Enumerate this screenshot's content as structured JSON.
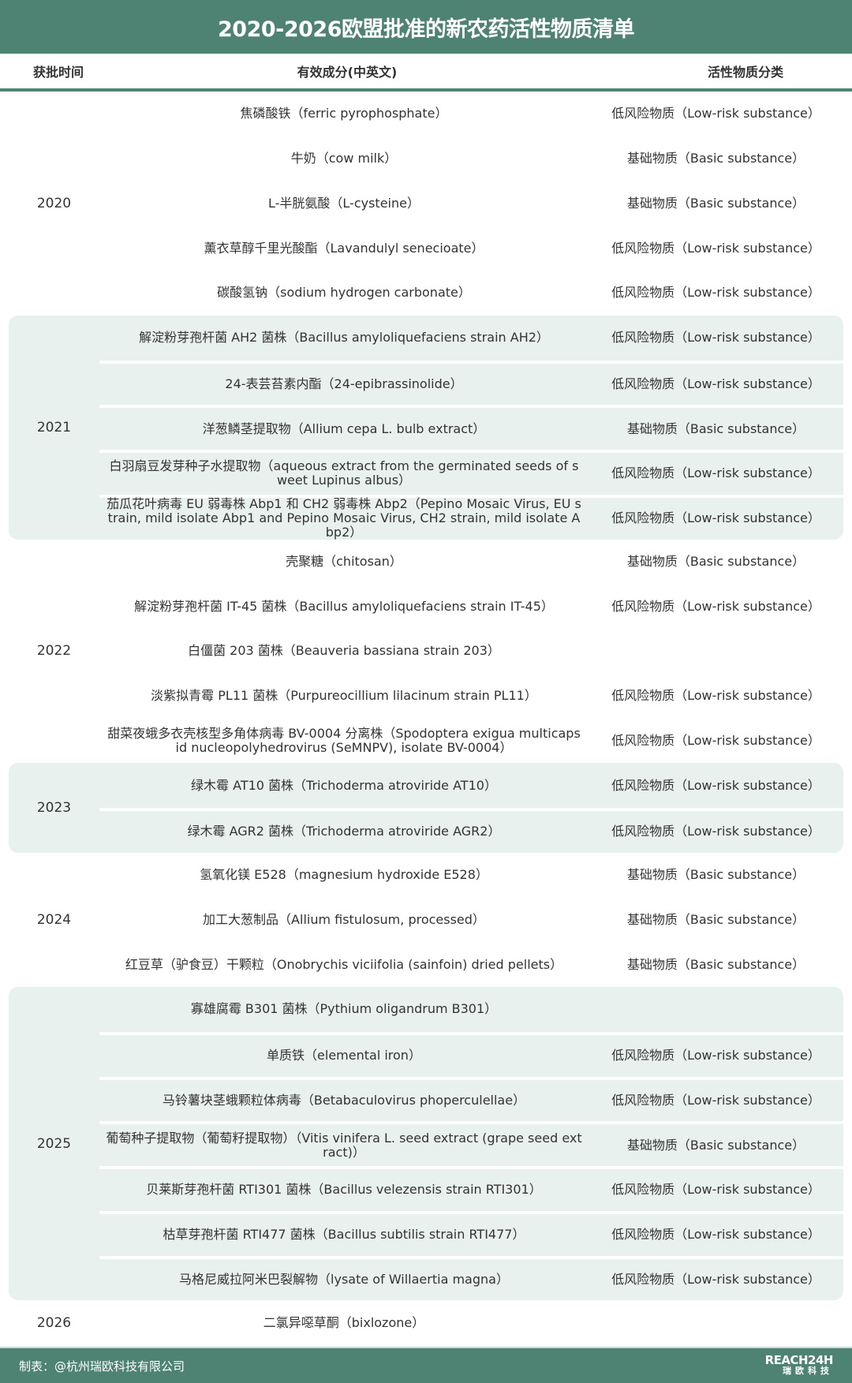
{
  "title": "2020-2026欧盟批准的新农药活性物质清单",
  "headers": {
    "year": "获批时间",
    "ingredient": "有效成分(中英文)",
    "category": "活性物质分类"
  },
  "groups": [
    {
      "year": "2020",
      "shaded": false,
      "rows": [
        {
          "name": "焦磷酸铁（ferric pyrophosphate）",
          "category": "低风险物质（Low-risk substance）"
        },
        {
          "name": "牛奶（cow milk）",
          "category": "基础物质（Basic substance）"
        },
        {
          "name": "L-半胱氨酸（L-cysteine）",
          "category": "基础物质（Basic substance）"
        },
        {
          "name": "薰衣草醇千里光酸酯（Lavandulyl senecioate）",
          "category": "低风险物质（Low-risk substance）"
        },
        {
          "name": "碳酸氢钠（sodium hydrogen carbonate）",
          "category": "低风险物质（Low-risk substance）"
        }
      ]
    },
    {
      "year": "2021",
      "shaded": true,
      "rows": [
        {
          "name": "解淀粉芽孢杆菌 AH2 菌株（Bacillus amyloliquefaciens strain AH2）",
          "category": "低风险物质（Low-risk substance）"
        },
        {
          "name": "24-表芸苔素内酯（24-epibrassinolide）",
          "category": "低风险物质（Low-risk substance）"
        },
        {
          "name": "洋葱鳞茎提取物（Allium cepa L. bulb extract）",
          "category": "基础物质（Basic substance）"
        },
        {
          "name": "白羽扇豆发芽种子水提取物（aqueous extract from the germinated seeds of sweet Lupinus albus）",
          "category": "低风险物质（Low-risk substance）"
        },
        {
          "name": "茄瓜花叶病毒 EU 弱毒株 Abp1 和 CH2 弱毒株 Abp2（Pepino Mosaic Virus, EU strain, mild isolate Abp1 and Pepino Mosaic Virus, CH2 strain, mild isolate Abp2）",
          "category": "低风险物质（Low-risk substance）"
        }
      ]
    },
    {
      "year": "2022",
      "shaded": false,
      "rows": [
        {
          "name": "壳聚糖（chitosan）",
          "category": "基础物质（Basic substance）"
        },
        {
          "name": "解淀粉芽孢杆菌 IT-45 菌株（Bacillus amyloliquefaciens strain IT-45）",
          "category": "低风险物质（Low-risk substance）"
        },
        {
          "name": "白僵菌 203 菌株（Beauveria bassiana strain 203）",
          "category": ""
        },
        {
          "name": "淡紫拟青霉 PL11 菌株（Purpureocillium lilacinum strain PL11）",
          "category": "低风险物质（Low-risk substance）"
        },
        {
          "name": "甜菜夜蛾多衣壳核型多角体病毒 BV-0004 分离株（Spodoptera exigua multicapsid nucleopolyhedrovirus (SeMNPV), isolate BV-0004）",
          "category": "低风险物质（Low-risk substance）"
        }
      ]
    },
    {
      "year": "2023",
      "shaded": true,
      "rows": [
        {
          "name": "绿木霉 AT10 菌株（Trichoderma atroviride AT10）",
          "category": "低风险物质（Low-risk substance）"
        },
        {
          "name": "绿木霉 AGR2 菌株（Trichoderma atroviride AGR2）",
          "category": "低风险物质（Low-risk substance）"
        }
      ]
    },
    {
      "year": "2024",
      "shaded": false,
      "rows": [
        {
          "name": "氢氧化镁 E528（magnesium hydroxide E528）",
          "category": "基础物质（Basic substance）"
        },
        {
          "name": "加工大葱制品（Allium fistulosum, processed）",
          "category": "基础物质（Basic substance）"
        },
        {
          "name": "红豆草（驴食豆）干颗粒（Onobrychis viciifolia (sainfoin) dried pellets）",
          "category": "基础物质（Basic substance）"
        }
      ]
    },
    {
      "year": "2025",
      "shaded": true,
      "rows": [
        {
          "name": "寡雄腐霉 B301 菌株（Pythium oligandrum B301）",
          "category": ""
        },
        {
          "name": "单质铁（elemental iron）",
          "category": "低风险物质（Low-risk substance）"
        },
        {
          "name": "马铃薯块茎蛾颗粒体病毒（Betabaculovirus phoperculellae）",
          "category": "低风险物质（Low-risk substance）"
        },
        {
          "name": "葡萄种子提取物（葡萄籽提取物）（Vitis vinifera L. seed extract (grape seed extract)）",
          "category": "基础物质（Basic substance）"
        },
        {
          "name": "贝莱斯芽孢杆菌 RTI301 菌株（Bacillus velezensis strain RTI301）",
          "category": "低风险物质（Low-risk substance）"
        },
        {
          "name": "枯草芽孢杆菌 RTI477 菌株（Bacillus subtilis strain RTI477）",
          "category": "低风险物质（Low-risk substance）"
        },
        {
          "name": "马格尼威拉阿米巴裂解物（lysate of Willaertia magna）",
          "category": "低风险物质（Low-risk substance）"
        }
      ]
    },
    {
      "year": "2026",
      "shaded": false,
      "rows": [
        {
          "name": "二氯异噁草酮（bixlozone）",
          "category": ""
        }
      ]
    }
  ],
  "footer": {
    "credit": "制表：@杭州瑞欧科技有限公司",
    "logo_line1": "REACH24H",
    "logo_line2": "瑞欧科技"
  },
  "colors": {
    "brand": "#4e8273",
    "shade": "#e9f1ee"
  }
}
